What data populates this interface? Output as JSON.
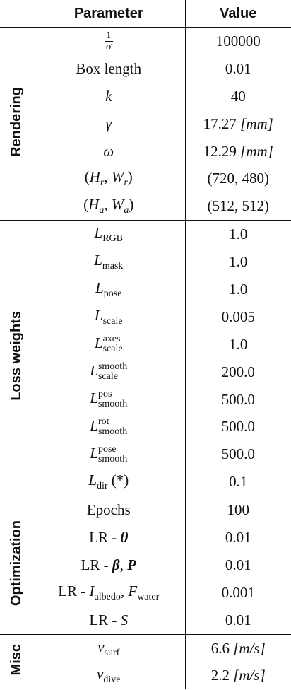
{
  "header": [
    "Parameter",
    "Value"
  ],
  "groups": [
    {
      "name": "Rendering",
      "rows": [
        {
          "param": [
            {
              "text": "1",
              "style": "num"
            },
            {
              "text": "σ",
              "style": "den"
            }
          ],
          "value": [
            {
              "text": "100000"
            }
          ]
        },
        {
          "param": [
            {
              "text": "Box length"
            }
          ],
          "value": [
            {
              "text": "0.01"
            }
          ]
        },
        {
          "param": [
            {
              "text": "k",
              "style": "math"
            }
          ],
          "value": [
            {
              "text": "40"
            }
          ]
        },
        {
          "param": [
            {
              "text": "γ",
              "style": "math"
            }
          ],
          "value": [
            {
              "text": "17.27 "
            },
            {
              "text": "[mm]",
              "style": "math"
            }
          ]
        },
        {
          "param": [
            {
              "text": "ω",
              "style": "math"
            }
          ],
          "value": [
            {
              "text": "12.29 "
            },
            {
              "text": "[mm]",
              "style": "math"
            }
          ]
        },
        {
          "param": [
            {
              "text": "("
            },
            {
              "text": "H",
              "style": "math"
            },
            {
              "text": "r",
              "style": "sub-math"
            },
            {
              "text": ", "
            },
            {
              "text": "W",
              "style": "math"
            },
            {
              "text": "r",
              "style": "sub-math"
            },
            {
              "text": ")"
            }
          ],
          "value": [
            {
              "text": "(720, 480)"
            }
          ]
        },
        {
          "param": [
            {
              "text": "("
            },
            {
              "text": "H",
              "style": "math"
            },
            {
              "text": "a",
              "style": "sub-math"
            },
            {
              "text": ", "
            },
            {
              "text": "W",
              "style": "math"
            },
            {
              "text": "a",
              "style": "sub-math"
            },
            {
              "text": ")"
            }
          ],
          "value": [
            {
              "text": "(512, 512)"
            }
          ]
        }
      ]
    },
    {
      "name": "Loss weights",
      "rows": [
        {
          "param": [
            {
              "text": "L",
              "style": "math"
            },
            {
              "text": "RGB",
              "style": "sub"
            }
          ],
          "value": [
            {
              "text": "1.0"
            }
          ]
        },
        {
          "param": [
            {
              "text": "L",
              "style": "math"
            },
            {
              "text": "mask",
              "style": "sub"
            }
          ],
          "value": [
            {
              "text": "1.0"
            }
          ]
        },
        {
          "param": [
            {
              "text": "L",
              "style": "math"
            },
            {
              "text": "pose",
              "style": "sub"
            }
          ],
          "value": [
            {
              "text": "1.0"
            }
          ]
        },
        {
          "param": [
            {
              "text": "L",
              "style": "math"
            },
            {
              "text": "scale",
              "style": "sub"
            }
          ],
          "value": [
            {
              "text": "0.005"
            }
          ]
        },
        {
          "param": [
            {
              "text": "L",
              "style": "math"
            },
            {
              "text": "axes",
              "style": "sup"
            },
            {
              "text": "scale",
              "style": "sub"
            }
          ],
          "value": [
            {
              "text": "1.0"
            }
          ]
        },
        {
          "param": [
            {
              "text": "L",
              "style": "math"
            },
            {
              "text": "smooth",
              "style": "sup"
            },
            {
              "text": "scale",
              "style": "sub"
            }
          ],
          "value": [
            {
              "text": "200.0"
            }
          ]
        },
        {
          "param": [
            {
              "text": "L",
              "style": "math"
            },
            {
              "text": "pos",
              "style": "sup"
            },
            {
              "text": "smooth",
              "style": "sub"
            }
          ],
          "value": [
            {
              "text": "500.0"
            }
          ]
        },
        {
          "param": [
            {
              "text": "L",
              "style": "math"
            },
            {
              "text": "rot",
              "style": "sup"
            },
            {
              "text": "smooth",
              "style": "sub"
            }
          ],
          "value": [
            {
              "text": "500.0"
            }
          ]
        },
        {
          "param": [
            {
              "text": "L",
              "style": "math"
            },
            {
              "text": "pose",
              "style": "sup"
            },
            {
              "text": "smooth",
              "style": "sub"
            }
          ],
          "value": [
            {
              "text": "500.0"
            }
          ]
        },
        {
          "param": [
            {
              "text": "L",
              "style": "math"
            },
            {
              "text": "dir",
              "style": "sub"
            },
            {
              "text": " (*)"
            }
          ],
          "value": [
            {
              "text": "0.1"
            }
          ]
        }
      ]
    },
    {
      "name": "Optimization",
      "rows": [
        {
          "param": [
            {
              "text": "Epochs"
            }
          ],
          "value": [
            {
              "text": "100"
            }
          ]
        },
        {
          "param": [
            {
              "text": "LR - "
            },
            {
              "text": "θ",
              "style": "bold-math"
            }
          ],
          "value": [
            {
              "text": "0.01"
            }
          ]
        },
        {
          "param": [
            {
              "text": "LR - "
            },
            {
              "text": "β",
              "style": "bold-math"
            },
            {
              "text": ", "
            },
            {
              "text": "P",
              "style": "bold-math"
            }
          ],
          "value": [
            {
              "text": "0.01"
            }
          ]
        },
        {
          "param": [
            {
              "text": "LR - "
            },
            {
              "text": "I",
              "style": "math"
            },
            {
              "text": "albedo",
              "style": "sub"
            },
            {
              "text": ", "
            },
            {
              "text": "F",
              "style": "math"
            },
            {
              "text": "water",
              "style": "sub"
            }
          ],
          "value": [
            {
              "text": "0.001"
            }
          ]
        },
        {
          "param": [
            {
              "text": "LR - "
            },
            {
              "text": "S",
              "style": "math"
            }
          ],
          "value": [
            {
              "text": "0.01"
            }
          ]
        }
      ]
    },
    {
      "name": "Misc",
      "rows": [
        {
          "param": [
            {
              "text": "v",
              "style": "math"
            },
            {
              "text": "surf",
              "style": "sub"
            }
          ],
          "value": [
            {
              "text": "6.6 "
            },
            {
              "text": "[m/s]",
              "style": "math"
            }
          ]
        },
        {
          "param": [
            {
              "text": "v",
              "style": "math"
            },
            {
              "text": "dive",
              "style": "sub"
            }
          ],
          "value": [
            {
              "text": "2.2 "
            },
            {
              "text": "[m/s]",
              "style": "math"
            }
          ]
        }
      ]
    }
  ]
}
